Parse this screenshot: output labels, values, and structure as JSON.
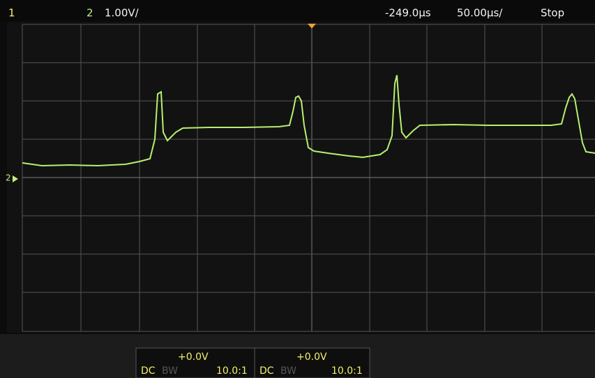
{
  "top_bar": {
    "channel1": "1",
    "channel2": "2",
    "scale": "1.00V/",
    "delay": "-249.0µs",
    "timebase": "50.00µs/",
    "status": "Stop"
  },
  "ground_marker": "2",
  "channel_info": [
    {
      "offset": "+0.0V",
      "coupling": "DC",
      "bandwidth": "BW",
      "probe": "10.0:1"
    },
    {
      "offset": "+0.0V",
      "coupling": "DC",
      "bandwidth": "BW",
      "probe": "10.0:1"
    }
  ]
}
